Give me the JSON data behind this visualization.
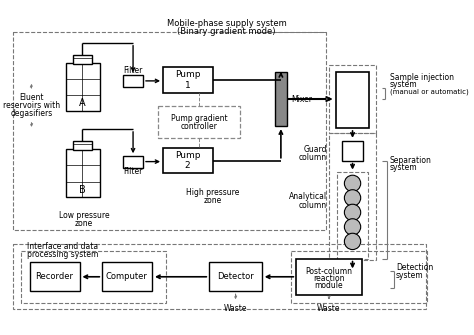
{
  "bg_color": "#ffffff",
  "lc": "#000000",
  "dc": "#777777",
  "gray_fill": "#aaaaaa",
  "mobile_label1": "Mobile-phase supply system",
  "mobile_label2": "(Binary gradient mode)",
  "sample_inj1": "Sample injection",
  "sample_inj2": "system",
  "sample_inj3": "(manual or automatic)",
  "sep_label": "Separation\nsystem",
  "eluent1": "Eluent",
  "eluent2": "reservoirs with",
  "eluent3": "degasifiers",
  "low_p1": "Low pressure",
  "low_p2": "zone",
  "high_p1": "High pressure",
  "high_p2": "zone",
  "guard_label1": "Guard",
  "guard_label2": "column",
  "analytical1": "Analytical",
  "analytical2": "column",
  "mixer_label": "Mixer",
  "pump1_label": "Pump\n1",
  "pump2_label": "Pump\n2",
  "filter_label": "Filter",
  "pgc_label1": "Pump gradient",
  "pgc_label2": "controller",
  "postcol1": "Post-column",
  "postcol2": "reaction",
  "postcol3": "module",
  "detector": "Detector",
  "recorder": "Recorder",
  "computer": "Computer",
  "interface1": "Interface and data",
  "interface2": "processing system",
  "detection1": "Detection",
  "detection2": "system",
  "waste": "Waste"
}
